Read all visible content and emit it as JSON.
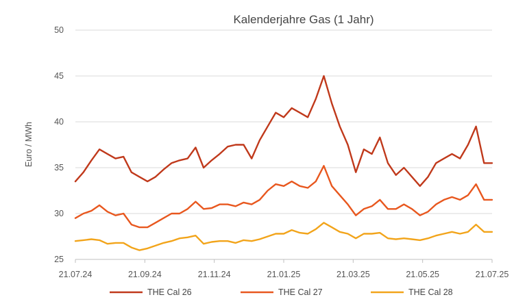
{
  "chart_data": {
    "type": "line",
    "title": "Kalenderjahre Gas (1 Jahr)",
    "xlabel": "",
    "ylabel": "Euro / MWh",
    "ylim": [
      25,
      50
    ],
    "yticks": [
      "25",
      "30",
      "35",
      "40",
      "45",
      "50"
    ],
    "xticks": [
      "21.07.24",
      "21.09.24",
      "21.11.24",
      "21.01.25",
      "21.03.25",
      "21.05.25",
      "21.07.25"
    ],
    "grid": "horizontal",
    "legend_position": "bottom",
    "x_points": 53,
    "series": [
      {
        "name": "THE Cal 26",
        "color": "#c0391b",
        "values": [
          33.5,
          34.5,
          35.8,
          37.0,
          36.5,
          36.0,
          36.2,
          34.5,
          34.0,
          33.5,
          34.0,
          34.8,
          35.5,
          35.8,
          36.0,
          37.2,
          35.0,
          35.8,
          36.5,
          37.3,
          37.5,
          37.5,
          36.0,
          38.0,
          39.5,
          41.0,
          40.5,
          41.5,
          41.0,
          40.5,
          42.5,
          45.0,
          42.0,
          39.5,
          37.5,
          34.5,
          37.0,
          36.5,
          38.3,
          35.5,
          34.2,
          35.0,
          34.0,
          33.0,
          34.0,
          35.5,
          36.0,
          36.5,
          36.0,
          37.5,
          39.5,
          35.5,
          35.5
        ]
      },
      {
        "name": "THE Cal 27",
        "color": "#e8571e",
        "values": [
          29.5,
          30.0,
          30.3,
          30.9,
          30.2,
          29.8,
          30.0,
          28.8,
          28.5,
          28.5,
          29.0,
          29.5,
          30.0,
          30.0,
          30.5,
          31.3,
          30.5,
          30.6,
          31.0,
          31.0,
          30.8,
          31.2,
          31.0,
          31.5,
          32.5,
          33.2,
          33.0,
          33.5,
          33.0,
          32.8,
          33.5,
          35.2,
          33.0,
          32.0,
          31.0,
          29.8,
          30.5,
          30.8,
          31.5,
          30.5,
          30.5,
          31.0,
          30.5,
          29.8,
          30.2,
          31.0,
          31.5,
          31.8,
          31.5,
          32.0,
          33.2,
          31.5,
          31.5
        ]
      },
      {
        "name": "THE Cal 28",
        "color": "#f2a41a",
        "values": [
          27.0,
          27.1,
          27.2,
          27.1,
          26.7,
          26.8,
          26.8,
          26.3,
          26.0,
          26.2,
          26.5,
          26.8,
          27.0,
          27.3,
          27.4,
          27.6,
          26.7,
          26.9,
          27.0,
          27.0,
          26.8,
          27.1,
          27.0,
          27.2,
          27.5,
          27.8,
          27.8,
          28.2,
          27.9,
          27.8,
          28.3,
          29.0,
          28.5,
          28.0,
          27.8,
          27.3,
          27.8,
          27.8,
          27.9,
          27.3,
          27.2,
          27.3,
          27.2,
          27.1,
          27.3,
          27.6,
          27.8,
          28.0,
          27.8,
          28.0,
          28.8,
          28.0,
          28.0
        ]
      }
    ]
  }
}
